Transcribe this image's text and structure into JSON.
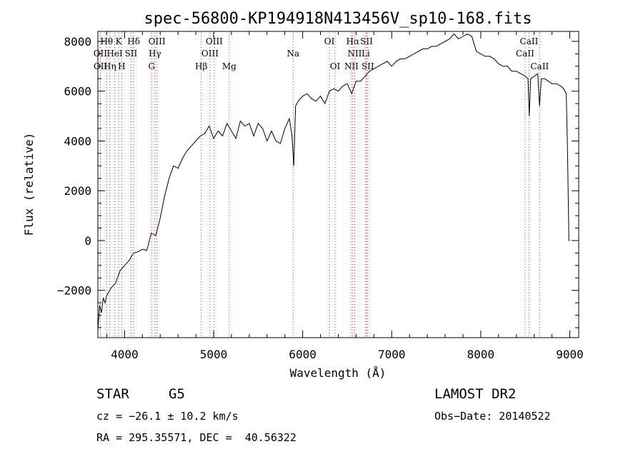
{
  "chart_data": {
    "type": "line",
    "title": "spec-56800-KP194918N413456V_sp10-168.fits",
    "xlabel": "Wavelength (Å)",
    "ylabel": "Flux (relative)",
    "xlim": [
      3700,
      9100
    ],
    "ylim": [
      -3900,
      8400
    ],
    "xticks": [
      4000,
      5000,
      6000,
      7000,
      8000,
      9000
    ],
    "yticks": [
      -2000,
      0,
      2000,
      4000,
      6000,
      8000
    ],
    "ytick_labels": [
      "−2000",
      "0",
      "2000",
      "4000",
      "6000",
      "8000"
    ],
    "series": [
      {
        "x": [
          3700,
          3720,
          3740,
          3760,
          3780,
          3800,
          3850,
          3900,
          3950,
          4000,
          4050,
          4100,
          4150,
          4200,
          4250,
          4300,
          4350,
          4400,
          4450,
          4500,
          4550,
          4600,
          4650,
          4700,
          4750,
          4800,
          4850,
          4900,
          4950,
          5000,
          5050,
          5100,
          5150,
          5200,
          5250,
          5300,
          5350,
          5400,
          5450,
          5500,
          5550,
          5600,
          5650,
          5700,
          5750,
          5800,
          5850,
          5880,
          5900,
          5920,
          5950,
          6000,
          6050,
          6100,
          6150,
          6200,
          6250,
          6300,
          6350,
          6400,
          6450,
          6500,
          6550,
          6600,
          6650,
          6700,
          6750,
          6800,
          6850,
          6900,
          6950,
          7000,
          7050,
          7100,
          7150,
          7200,
          7250,
          7300,
          7350,
          7400,
          7450,
          7500,
          7550,
          7600,
          7650,
          7700,
          7750,
          7800,
          7850,
          7900,
          7950,
          8000,
          8050,
          8100,
          8150,
          8200,
          8250,
          8300,
          8350,
          8400,
          8450,
          8500,
          8530,
          8545,
          8560,
          8600,
          8640,
          8660,
          8680,
          8720,
          8760,
          8800,
          8850,
          8900,
          8930,
          8960,
          8975,
          8990,
          9000
        ],
        "values": [
          -3600,
          -2600,
          -2900,
          -2300,
          -2500,
          -2200,
          -1900,
          -1700,
          -1200,
          -1000,
          -800,
          -500,
          -450,
          -350,
          -400,
          300,
          200,
          900,
          1800,
          2500,
          3000,
          2900,
          3300,
          3600,
          3800,
          4000,
          4200,
          4300,
          4600,
          4100,
          4400,
          4200,
          4700,
          4400,
          4100,
          4800,
          4600,
          4700,
          4200,
          4700,
          4500,
          4000,
          4400,
          4000,
          3900,
          4500,
          4900,
          4200,
          3000,
          5400,
          5600,
          5800,
          5900,
          5700,
          5600,
          5800,
          5500,
          6000,
          6100,
          6000,
          6200,
          6300,
          5900,
          6400,
          6400,
          6600,
          6800,
          6900,
          7000,
          7100,
          7200,
          7000,
          7200,
          7300,
          7300,
          7400,
          7500,
          7600,
          7700,
          7700,
          7800,
          7800,
          7900,
          8000,
          8100,
          8300,
          8100,
          8200,
          8300,
          8200,
          7600,
          7500,
          7400,
          7400,
          7300,
          7100,
          7000,
          7000,
          6800,
          6800,
          6700,
          6600,
          6500,
          5000,
          6500,
          6600,
          6700,
          5400,
          6500,
          6500,
          6400,
          6300,
          6300,
          6200,
          6100,
          5900,
          3500,
          0,
          0
        ]
      }
    ],
    "lines": [
      {
        "name": "Hθ",
        "x": 3798,
        "row": 1
      },
      {
        "name": "K",
        "x": 3934,
        "row": 1
      },
      {
        "name": "Hδ",
        "x": 4102,
        "row": 1
      },
      {
        "name": "OIII",
        "x": 4363,
        "row": 1
      },
      {
        "name": "OIII",
        "x": 5007,
        "row": 1
      },
      {
        "name": "OI",
        "x": 6300,
        "row": 1
      },
      {
        "name": "Hα",
        "x": 6563,
        "row": 1
      },
      {
        "name": "SII",
        "x": 6717,
        "row": 1
      },
      {
        "name": "CaII",
        "x": 8542,
        "row": 1
      },
      {
        "name": "OII",
        "x": 3727,
        "row": 2
      },
      {
        "name": "HeI",
        "x": 3889,
        "row": 2
      },
      {
        "name": "SII",
        "x": 4072,
        "row": 2
      },
      {
        "name": "Hγ",
        "x": 4340,
        "row": 2
      },
      {
        "name": "OIII",
        "x": 4959,
        "row": 2
      },
      {
        "name": "Na",
        "x": 5893,
        "row": 2
      },
      {
        "name": "NII",
        "x": 6584,
        "row": 2
      },
      {
        "name": "Li",
        "x": 6708,
        "row": 2
      },
      {
        "name": "CaII",
        "x": 8498,
        "row": 2
      },
      {
        "name": "OII",
        "x": 3729,
        "row": 3
      },
      {
        "name": "Hη",
        "x": 3835,
        "row": 3
      },
      {
        "name": "H",
        "x": 3968,
        "row": 3
      },
      {
        "name": "G",
        "x": 4304,
        "row": 3
      },
      {
        "name": "Hβ",
        "x": 4861,
        "row": 3
      },
      {
        "name": "Mg",
        "x": 5175,
        "row": 3
      },
      {
        "name": "OI",
        "x": 6364,
        "row": 3
      },
      {
        "name": "NII",
        "x": 6548,
        "row": 3
      },
      {
        "name": "SII",
        "x": 6731,
        "row": 3
      },
      {
        "name": "CaII",
        "x": 8662,
        "row": 3
      }
    ]
  },
  "info": {
    "class": "STAR",
    "subclass": "G5",
    "survey": "LAMOST DR2",
    "cz": "cz = −26.1 ± 10.2 km/s",
    "obs_date": "Obs−Date: 20140522",
    "radec": "RA = 295.35571, DEC =  40.56322"
  }
}
